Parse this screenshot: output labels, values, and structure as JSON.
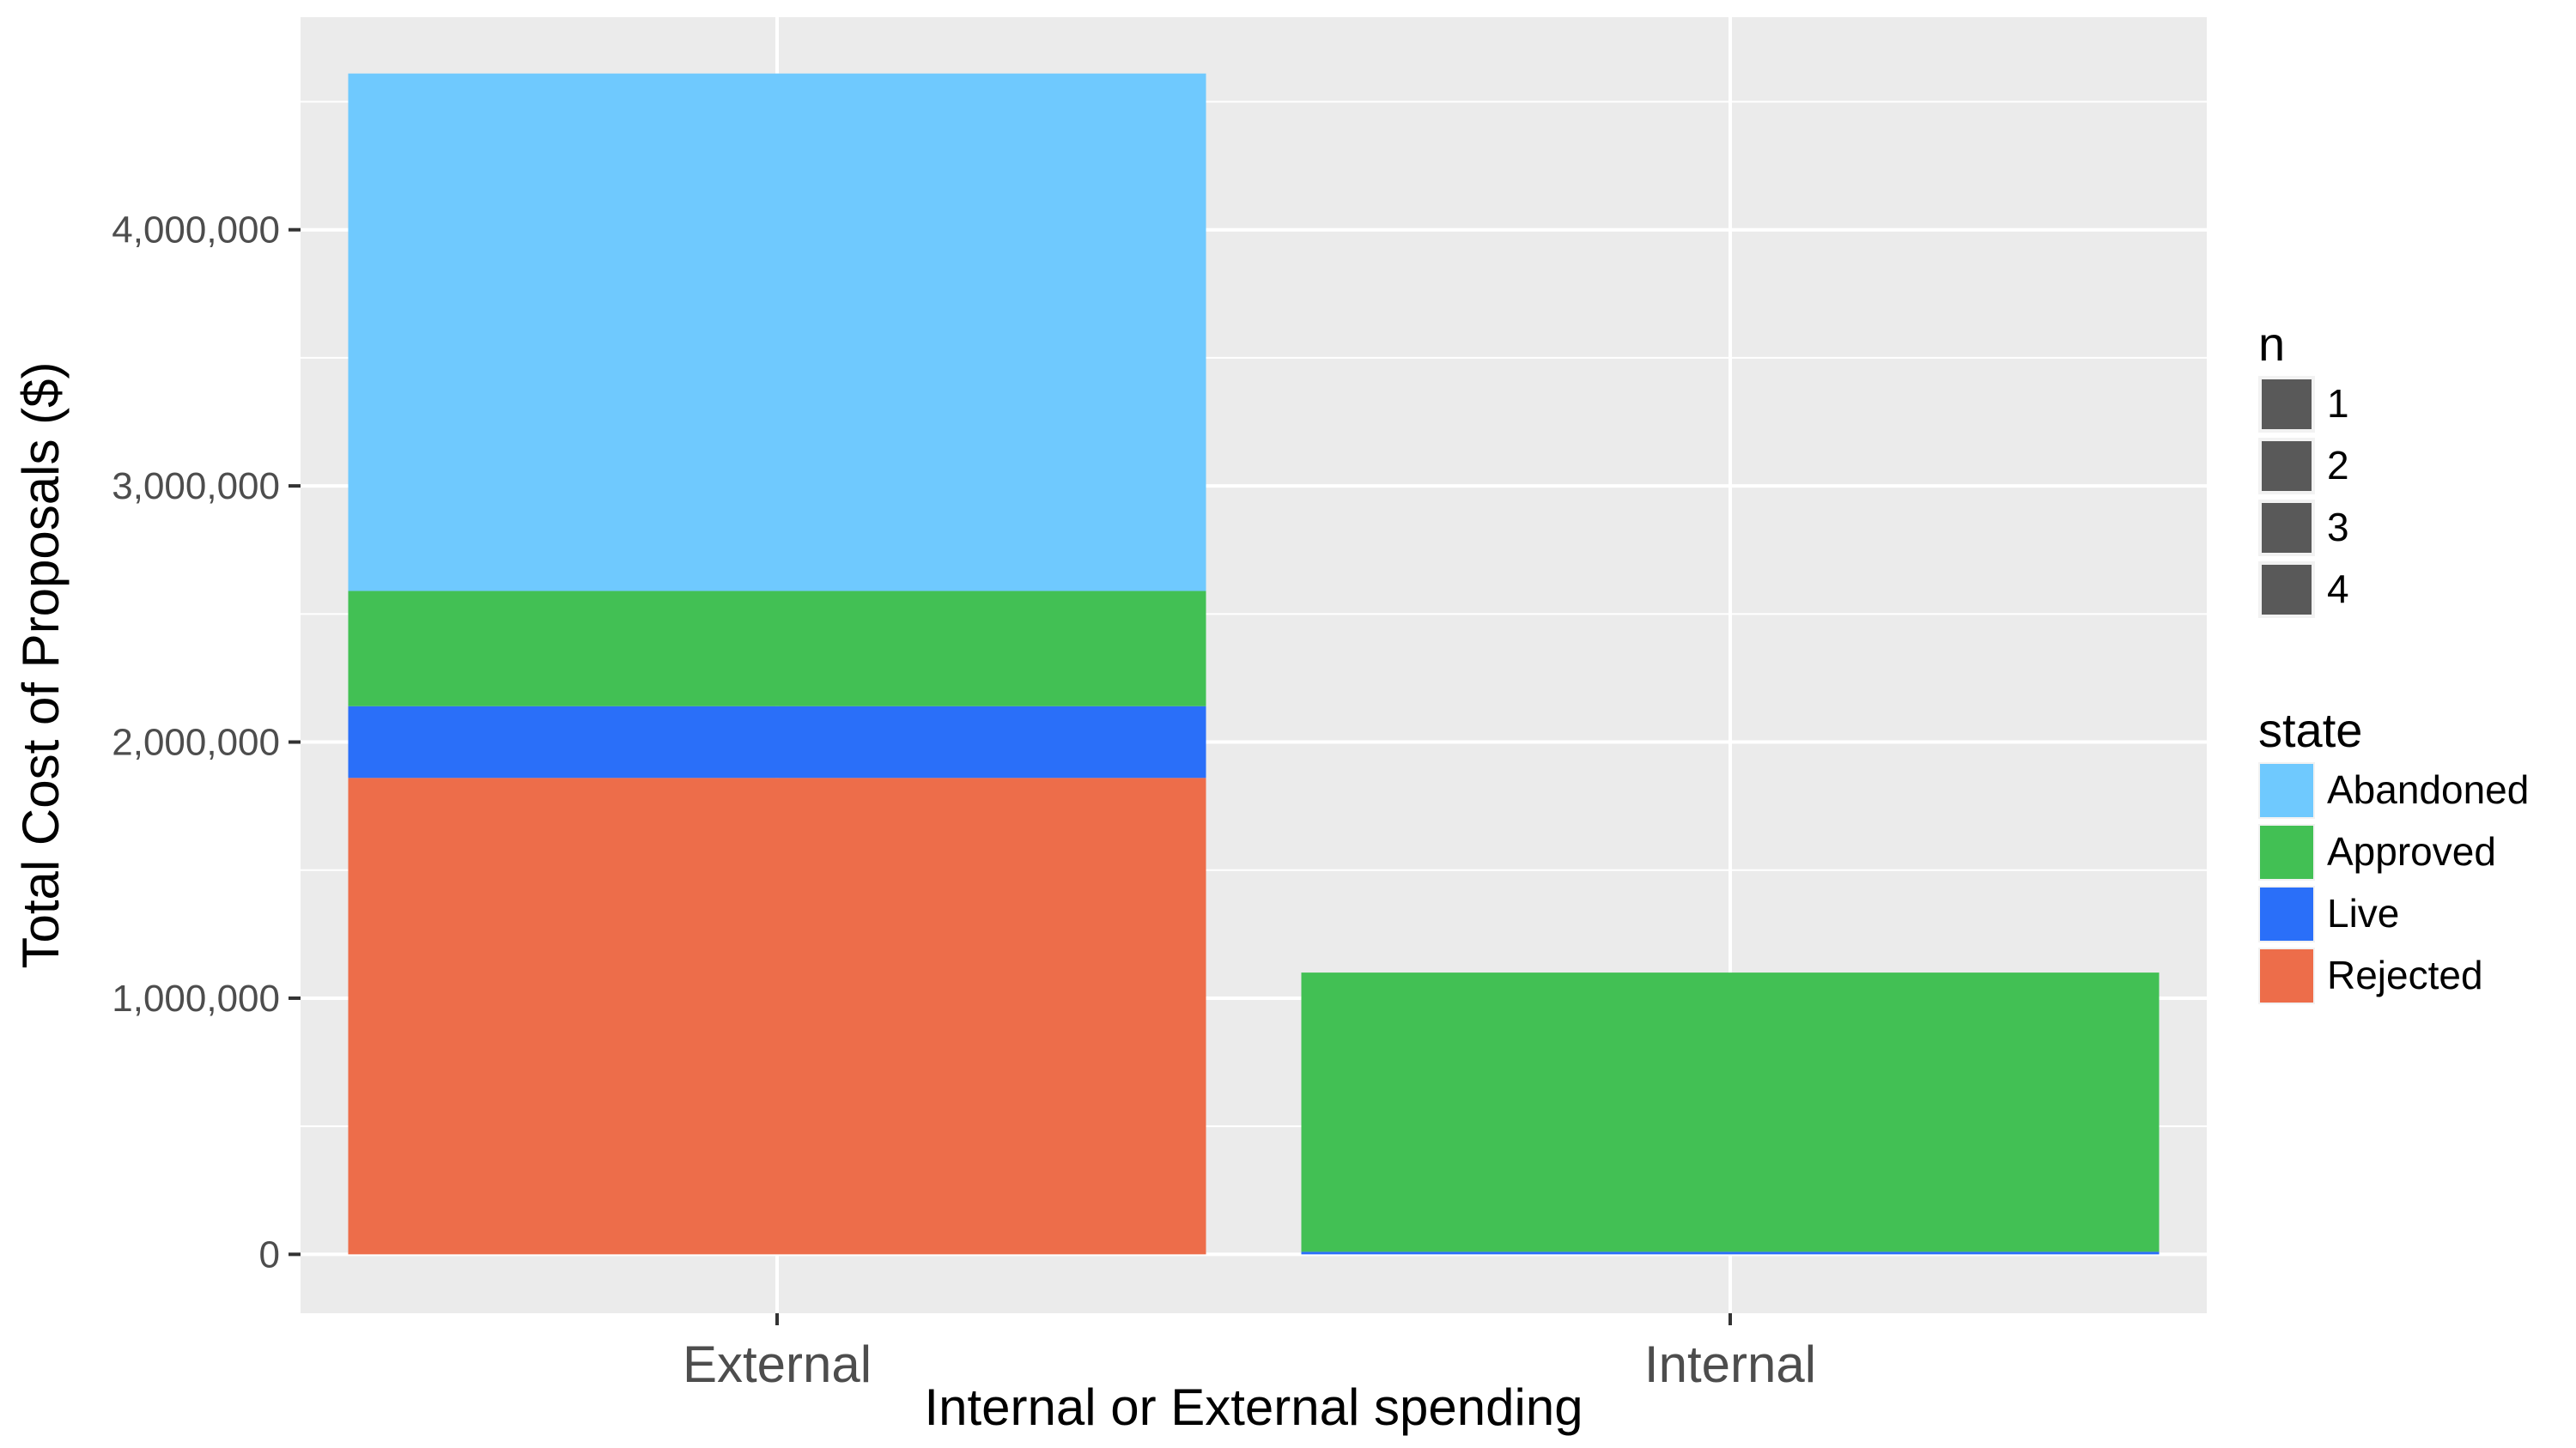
{
  "chart_data": {
    "type": "bar",
    "stacked": true,
    "xlabel": "Internal or External spending",
    "ylabel": "Total Cost of Proposals ($)",
    "categories": [
      "External",
      "Internal"
    ],
    "ylim": [
      -230000,
      4830000
    ],
    "yticks": [
      0,
      1000000,
      2000000,
      3000000,
      4000000
    ],
    "ytick_labels": [
      "0",
      "1,000,000",
      "2,000,000",
      "3,000,000",
      "4,000,000"
    ],
    "grid": true,
    "legend_placement": "right",
    "series": [
      {
        "name": "Rejected",
        "color": "#ED6D4A",
        "values": [
          1860000,
          0
        ]
      },
      {
        "name": "Live",
        "color": "#2A6FF9",
        "values": [
          280000,
          10000
        ]
      },
      {
        "name": "Approved",
        "color": "#42C054",
        "values": [
          450000,
          1090000
        ]
      },
      {
        "name": "Abandoned",
        "color": "#6FC9FE",
        "values": [
          2020000,
          0
        ]
      }
    ],
    "legends": {
      "n": {
        "title": "n",
        "items": [
          "1",
          "2",
          "3",
          "4"
        ],
        "color": "#595959"
      },
      "state": {
        "title": "state",
        "items": [
          "Abandoned",
          "Approved",
          "Live",
          "Rejected"
        ],
        "colors": [
          "#6FC9FE",
          "#42C054",
          "#2A6FF9",
          "#ED6D4A"
        ]
      }
    }
  }
}
